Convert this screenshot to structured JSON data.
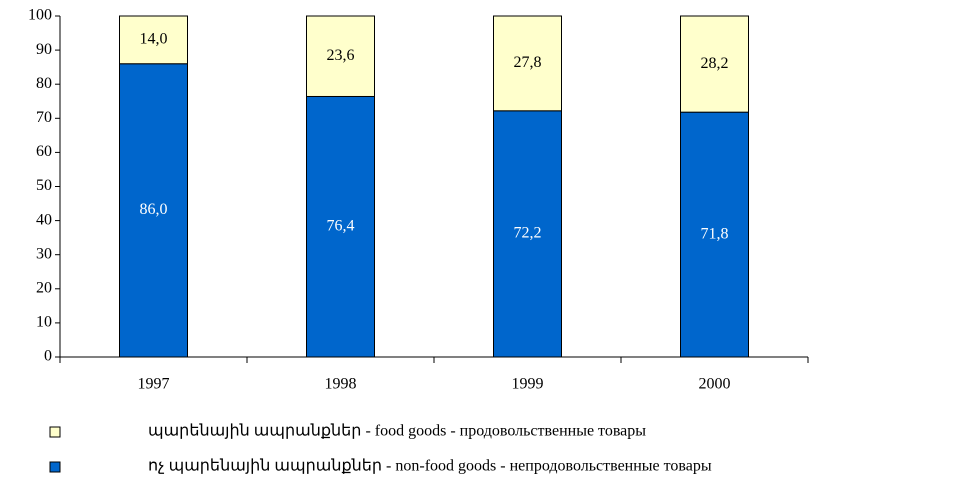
{
  "chart_data": {
    "type": "stacked_bar",
    "categories": [
      "1997",
      "1998",
      "1999",
      "2000"
    ],
    "series": [
      {
        "name": "ոչ պարենային ապրանքներ - non-food goods - непродовольственные товары",
        "color": "#0066cc",
        "values": [
          86.0,
          76.4,
          72.2,
          71.8
        ],
        "value_labels": [
          "86,0",
          "76,4",
          "72,2",
          "71,8"
        ],
        "label_color": "#ffffff"
      },
      {
        "name": "պարենային ապրանքներ - food goods - продовольственные товары",
        "color": "#ffffcc",
        "values": [
          14.0,
          23.6,
          27.8,
          28.2
        ],
        "value_labels": [
          "14,0",
          "23,6",
          "27,8",
          "28,2"
        ],
        "label_color": "#000000"
      }
    ],
    "ylim": [
      0,
      100
    ],
    "yticks": [
      0,
      10,
      20,
      30,
      40,
      50,
      60,
      70,
      80,
      90,
      100
    ],
    "grid": false
  }
}
